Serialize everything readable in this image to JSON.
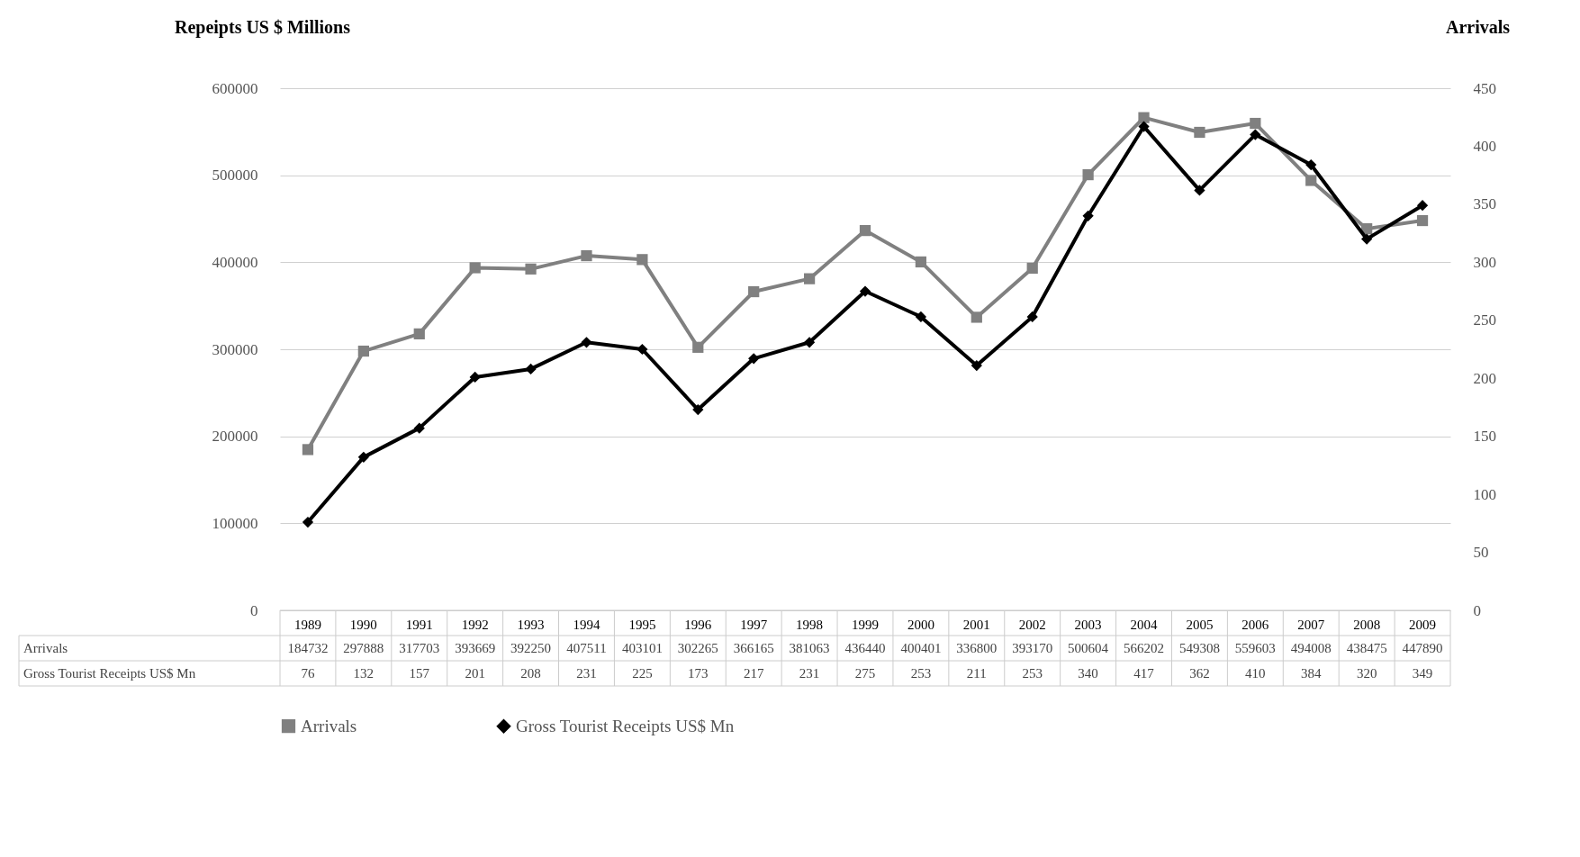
{
  "chart_data": {
    "type": "line",
    "ylabel": "Repeipts US $ Millions",
    "y2label": "Arrivals",
    "categories": [
      "1989",
      "1990",
      "1991",
      "1992",
      "1993",
      "1994",
      "1995",
      "1996",
      "1997",
      "1998",
      "1999",
      "2000",
      "2001",
      "2002",
      "2003",
      "2004",
      "2005",
      "2006",
      "2007",
      "2008",
      "2009"
    ],
    "series": [
      {
        "name": "Arrivals",
        "color": "#808080",
        "marker": "square",
        "values": [
          184732,
          297888,
          317703,
          393669,
          392250,
          407511,
          403101,
          302265,
          366165,
          381063,
          436440,
          400401,
          336800,
          393170,
          500604,
          566202,
          549308,
          559603,
          494008,
          438475,
          447890
        ]
      },
      {
        "name": "Gross Tourist Receipts US$ Mn",
        "color": "#000000",
        "marker": "diamond",
        "axis": "y2",
        "values": [
          76,
          132,
          157,
          201,
          208,
          231,
          225,
          173,
          217,
          231,
          275,
          253,
          211,
          253,
          340,
          417,
          362,
          410,
          384,
          320,
          349
        ]
      }
    ],
    "ylim": [
      0,
      600000
    ],
    "yticks": [
      0,
      100000,
      200000,
      300000,
      400000,
      500000,
      600000
    ],
    "y2lim": [
      0,
      450
    ],
    "y2ticks": [
      0,
      50,
      100,
      150,
      200,
      250,
      300,
      350,
      400,
      450
    ],
    "grid": "y",
    "legend": "bottom",
    "data_labels": true,
    "line_style": "solid"
  }
}
